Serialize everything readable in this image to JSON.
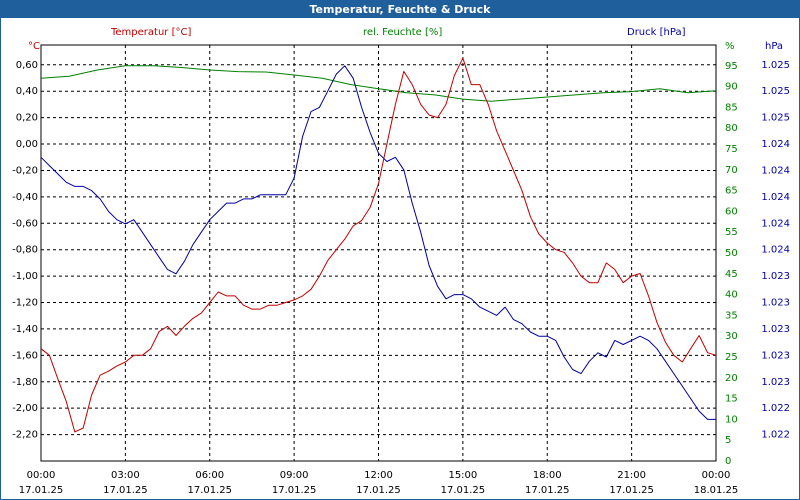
{
  "window": {
    "title": "Temperatur, Feuchte & Druck"
  },
  "legend": {
    "temp": "Temperatur [°C]",
    "hum": "rel. Feuchte [%]",
    "press": "Druck [hPa]"
  },
  "colors": {
    "temp": "#c00000",
    "hum": "#008000",
    "press": "#0000a0",
    "title_bg": "#1f5f9c",
    "grid": "#000000"
  },
  "chart_data": {
    "type": "line",
    "title": "Temperatur, Feuchte & Druck",
    "grid": true,
    "x_ticks": [
      {
        "time": "00:00",
        "date": "17.01.25"
      },
      {
        "time": "03:00",
        "date": "17.01.25"
      },
      {
        "time": "06:00",
        "date": "17.01.25"
      },
      {
        "time": "09:00",
        "date": "17.01.25"
      },
      {
        "time": "12:00",
        "date": "17.01.25"
      },
      {
        "time": "15:00",
        "date": "17.01.25"
      },
      {
        "time": "18:00",
        "date": "17.01.25"
      },
      {
        "time": "21:00",
        "date": "17.01.25"
      },
      {
        "time": "00:00",
        "date": "18.01.25"
      }
    ],
    "xlim": [
      0,
      24
    ],
    "axes": {
      "temp": {
        "unit": "°C",
        "ylim": [
          -2.4,
          0.75
        ],
        "ticks": [
          "0,60",
          "0,40",
          "0,20",
          "0,00",
          "-0,20",
          "-0,40",
          "-0,60",
          "-0,80",
          "-1,00",
          "-1,20",
          "-1,40",
          "-1,60",
          "-1,80",
          "-2,00",
          "-2,20"
        ],
        "tick_values": [
          0.6,
          0.4,
          0.2,
          0.0,
          -0.2,
          -0.4,
          -0.6,
          -0.8,
          -1.0,
          -1.2,
          -1.4,
          -1.6,
          -1.8,
          -2.0,
          -2.2
        ]
      },
      "hum": {
        "unit": "%",
        "ylim": [
          0,
          100
        ],
        "ticks": [
          "95",
          "90",
          "85",
          "80",
          "75",
          "70",
          "65",
          "60",
          "55",
          "50",
          "45",
          "40",
          "35",
          "30",
          "25",
          "20",
          "15",
          "10",
          "5",
          "0"
        ],
        "tick_values": [
          95,
          90,
          85,
          80,
          75,
          70,
          65,
          60,
          55,
          50,
          45,
          40,
          35,
          30,
          25,
          20,
          15,
          10,
          5,
          0
        ]
      },
      "press": {
        "unit": "hPa",
        "ticks": [
          "1.025",
          "1.025",
          "1.025",
          "1.024",
          "1.024",
          "1.024",
          "1.024",
          "1.024",
          "1.023",
          "1.023",
          "1.023",
          "1.023",
          "1.023",
          "1.022",
          "1.022"
        ]
      }
    },
    "series": [
      {
        "name": "Temperatur [°C]",
        "axis": "temp",
        "x": [
          0.0,
          0.3,
          0.6,
          0.9,
          1.2,
          1.5,
          1.8,
          2.1,
          2.4,
          2.7,
          3.0,
          3.3,
          3.6,
          3.9,
          4.2,
          4.5,
          4.8,
          5.1,
          5.4,
          5.7,
          6.0,
          6.3,
          6.6,
          6.9,
          7.2,
          7.5,
          7.8,
          8.1,
          8.4,
          8.7,
          9.0,
          9.3,
          9.6,
          9.9,
          10.2,
          10.5,
          10.8,
          11.1,
          11.4,
          11.7,
          12.0,
          12.3,
          12.6,
          12.9,
          13.2,
          13.5,
          13.8,
          14.1,
          14.4,
          14.7,
          15.0,
          15.3,
          15.6,
          15.9,
          16.2,
          16.5,
          16.8,
          17.1,
          17.4,
          17.7,
          18.0,
          18.3,
          18.6,
          18.9,
          19.2,
          19.5,
          19.8,
          20.1,
          20.4,
          20.7,
          21.0,
          21.3,
          21.6,
          21.9,
          22.2,
          22.5,
          22.8,
          23.1,
          23.4,
          23.7,
          24.0
        ],
        "values": [
          -1.55,
          -1.6,
          -1.78,
          -1.95,
          -2.18,
          -2.15,
          -1.9,
          -1.75,
          -1.72,
          -1.68,
          -1.65,
          -1.6,
          -1.6,
          -1.55,
          -1.42,
          -1.38,
          -1.45,
          -1.38,
          -1.32,
          -1.28,
          -1.2,
          -1.12,
          -1.15,
          -1.15,
          -1.22,
          -1.25,
          -1.25,
          -1.22,
          -1.22,
          -1.2,
          -1.18,
          -1.15,
          -1.1,
          -1.0,
          -0.88,
          -0.8,
          -0.72,
          -0.62,
          -0.58,
          -0.48,
          -0.3,
          0.0,
          0.3,
          0.55,
          0.45,
          0.3,
          0.22,
          0.2,
          0.3,
          0.52,
          0.65,
          0.45,
          0.45,
          0.3,
          0.1,
          -0.05,
          -0.2,
          -0.35,
          -0.55,
          -0.68,
          -0.75,
          -0.8,
          -0.82,
          -0.9,
          -1.0,
          -1.05,
          -1.05,
          -0.9,
          -0.95,
          -1.05,
          -1.0,
          -0.98,
          -1.15,
          -1.35,
          -1.5,
          -1.6,
          -1.65,
          -1.55,
          -1.45,
          -1.58,
          -1.6
        ]
      },
      {
        "name": "rel. Feuchte [%]",
        "axis": "hum",
        "x": [
          0,
          1,
          2,
          3,
          4,
          5,
          6,
          7,
          8,
          9,
          10,
          11,
          12,
          13,
          14,
          15,
          16,
          17,
          18,
          19,
          20,
          21,
          22,
          23,
          24
        ],
        "values": [
          92,
          92.5,
          94,
          95,
          95,
          94.6,
          94,
          93.6,
          93.5,
          92.8,
          92,
          90.5,
          89.5,
          88.5,
          88,
          87,
          86.5,
          87,
          87.5,
          88,
          88.5,
          88.8,
          89.5,
          88.5,
          89
        ]
      },
      {
        "name": "Druck [hPa]",
        "axis": "press",
        "x": [
          0.0,
          0.3,
          0.6,
          0.9,
          1.2,
          1.5,
          1.8,
          2.1,
          2.4,
          2.7,
          3.0,
          3.3,
          3.6,
          3.9,
          4.2,
          4.5,
          4.8,
          5.1,
          5.4,
          5.7,
          6.0,
          6.3,
          6.6,
          6.9,
          7.2,
          7.5,
          7.8,
          8.1,
          8.4,
          8.7,
          9.0,
          9.3,
          9.6,
          9.9,
          10.2,
          10.5,
          10.8,
          11.1,
          11.4,
          11.7,
          12.0,
          12.3,
          12.6,
          12.9,
          13.2,
          13.5,
          13.8,
          14.1,
          14.4,
          14.7,
          15.0,
          15.3,
          15.6,
          15.9,
          16.2,
          16.5,
          16.8,
          17.1,
          17.4,
          17.7,
          18.0,
          18.3,
          18.6,
          18.9,
          19.2,
          19.5,
          19.8,
          20.1,
          20.4,
          20.7,
          21.0,
          21.3,
          21.6,
          21.9,
          22.2,
          22.5,
          22.8,
          23.1,
          23.4,
          23.7,
          24.0
        ],
        "values": [
          73,
          71,
          69,
          67,
          66,
          66,
          65,
          63,
          60,
          58,
          57,
          58,
          55,
          52,
          49,
          46,
          45,
          48,
          52,
          55,
          58,
          60,
          62,
          62,
          63,
          63,
          64,
          64,
          64,
          64,
          68,
          78,
          84,
          85,
          89,
          93,
          95,
          92,
          85,
          79,
          74,
          72,
          73,
          70,
          62,
          55,
          47,
          42,
          39,
          40,
          40,
          39,
          37,
          36,
          35,
          37,
          34,
          33,
          31,
          30,
          30,
          29,
          25,
          22,
          21,
          24,
          26,
          25,
          29,
          28,
          29,
          30,
          29,
          27,
          24,
          21,
          18,
          15,
          12,
          10,
          10
        ]
      }
    ]
  }
}
